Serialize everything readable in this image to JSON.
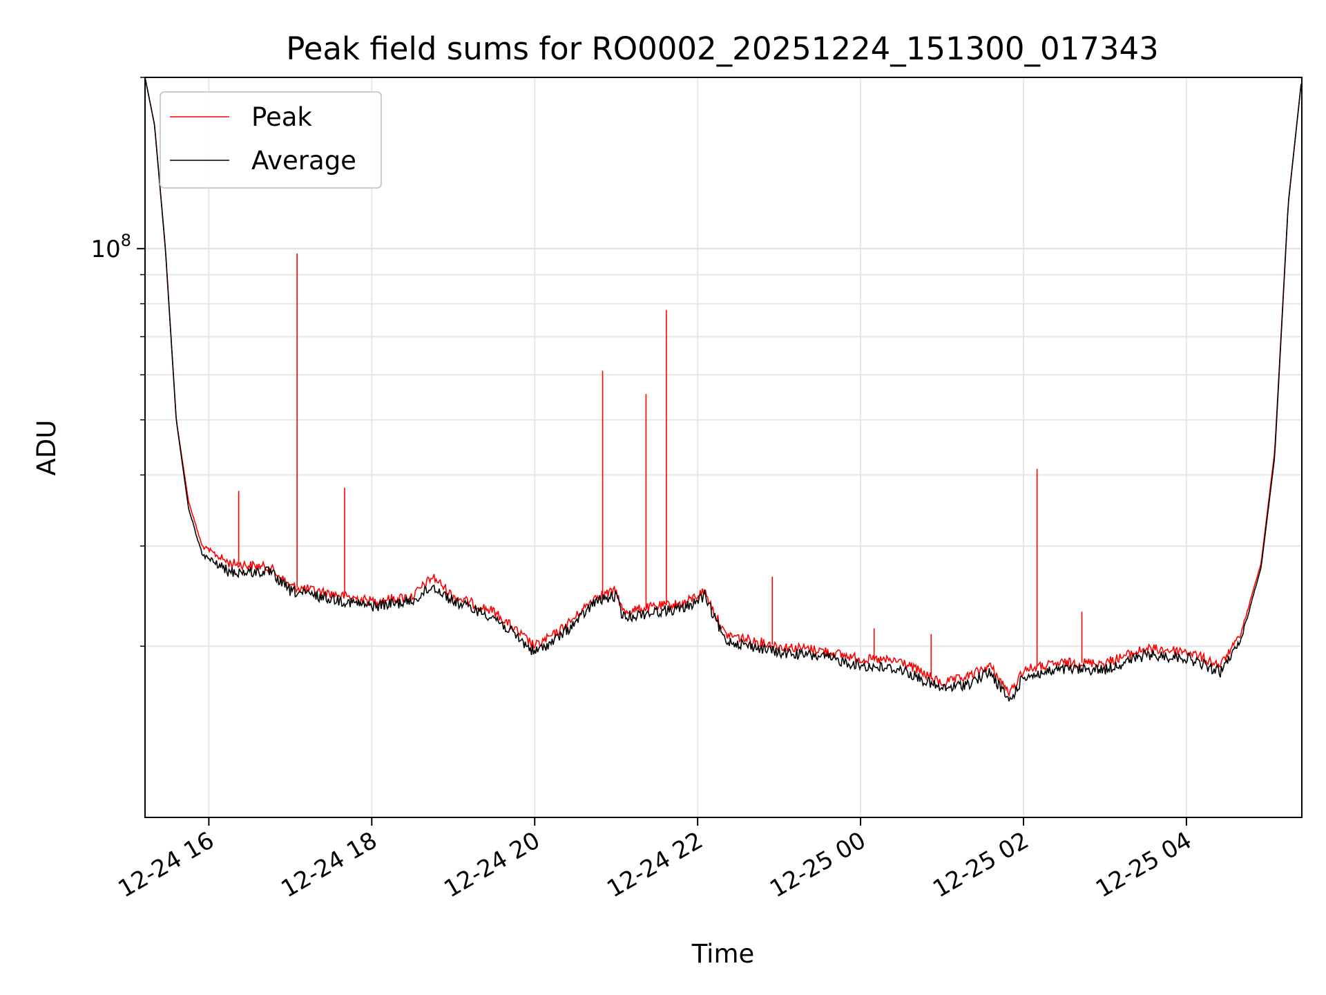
{
  "chart_data": {
    "type": "line",
    "title": "Peak field sums for RO0002_20251224_151300_017343",
    "xlabel": "Time",
    "ylabel": "ADU",
    "x_axis": {
      "type": "datetime",
      "range": [
        "2025-12-24 15:13",
        "2025-12-25 05:25"
      ],
      "ticks": [
        {
          "value": "2025-12-24 16:00",
          "label": "12-24 16"
        },
        {
          "value": "2025-12-24 18:00",
          "label": "12-24 18"
        },
        {
          "value": "2025-12-24 20:00",
          "label": "12-24 20"
        },
        {
          "value": "2025-12-24 22:00",
          "label": "12-24 22"
        },
        {
          "value": "2025-12-25 00:00",
          "label": "12-25 00"
        },
        {
          "value": "2025-12-25 02:00",
          "label": "12-25 02"
        },
        {
          "value": "2025-12-25 04:00",
          "label": "12-25 04"
        }
      ]
    },
    "y_axis": {
      "scale": "log",
      "range": [
        10000000,
        200000000
      ],
      "major_ticks": [
        {
          "value": 100000000,
          "label_base": "10",
          "label_exp": "8"
        }
      ],
      "minor_ticks": [
        20000000,
        30000000,
        40000000,
        50000000,
        60000000,
        70000000,
        80000000,
        90000000,
        200000000
      ]
    },
    "grid": true,
    "legend": {
      "position": "top-left"
    },
    "series": [
      {
        "name": "Peak",
        "color": "#ff0000",
        "points": [
          [
            "2025-12-24 15:13",
            200000000
          ],
          [
            "2025-12-24 15:20",
            165000000
          ],
          [
            "2025-12-24 15:28",
            100000000
          ],
          [
            "2025-12-24 15:36",
            50000000
          ],
          [
            "2025-12-24 15:45",
            36000000
          ],
          [
            "2025-12-24 15:55",
            30000000
          ],
          [
            "2025-12-24 16:15",
            28000000
          ],
          [
            "2025-12-24 16:45",
            27500000
          ],
          [
            "2025-12-24 17:00",
            25500000
          ],
          [
            "2025-12-24 17:20",
            25000000
          ],
          [
            "2025-12-24 17:40",
            24500000
          ],
          [
            "2025-12-24 18:00",
            24000000
          ],
          [
            "2025-12-24 18:30",
            24500000
          ],
          [
            "2025-12-24 18:45",
            26500000
          ],
          [
            "2025-12-24 19:00",
            24500000
          ],
          [
            "2025-12-24 19:30",
            23000000
          ],
          [
            "2025-12-24 20:00",
            20000000
          ],
          [
            "2025-12-24 20:15",
            21000000
          ],
          [
            "2025-12-24 20:30",
            22500000
          ],
          [
            "2025-12-24 20:45",
            24500000
          ],
          [
            "2025-12-24 21:00",
            25000000
          ],
          [
            "2025-12-24 21:05",
            23000000
          ],
          [
            "2025-12-24 21:30",
            23500000
          ],
          [
            "2025-12-24 21:50",
            23800000
          ],
          [
            "2025-12-24 22:05",
            25000000
          ],
          [
            "2025-12-24 22:20",
            21000000
          ],
          [
            "2025-12-24 23:00",
            20000000
          ],
          [
            "2025-12-24 23:30",
            19700000
          ],
          [
            "2025-12-25 00:00",
            19000000
          ],
          [
            "2025-12-25 00:30",
            18800000
          ],
          [
            "2025-12-25 01:00",
            17200000
          ],
          [
            "2025-12-25 01:20",
            17700000
          ],
          [
            "2025-12-25 01:35",
            18500000
          ],
          [
            "2025-12-25 01:50",
            16500000
          ],
          [
            "2025-12-25 02:00",
            18200000
          ],
          [
            "2025-12-25 02:30",
            18700000
          ],
          [
            "2025-12-25 03:00",
            18700000
          ],
          [
            "2025-12-25 03:30",
            19800000
          ],
          [
            "2025-12-25 04:00",
            19600000
          ],
          [
            "2025-12-25 04:25",
            18500000
          ],
          [
            "2025-12-25 04:40",
            21000000
          ],
          [
            "2025-12-25 04:55",
            28000000
          ],
          [
            "2025-12-25 05:05",
            44000000
          ],
          [
            "2025-12-25 05:15",
            120000000
          ],
          [
            "2025-12-25 05:25",
            200000000
          ]
        ],
        "spikes": [
          [
            "2025-12-24 16:22",
            37500000
          ],
          [
            "2025-12-24 17:05",
            98000000
          ],
          [
            "2025-12-24 17:40",
            38000000
          ],
          [
            "2025-12-24 20:50",
            61000000
          ],
          [
            "2025-12-24 21:22",
            55500000
          ],
          [
            "2025-12-24 21:37",
            78000000
          ],
          [
            "2025-12-24 22:55",
            26500000
          ],
          [
            "2025-12-25 00:10",
            21500000
          ],
          [
            "2025-12-25 00:52",
            21000000
          ],
          [
            "2025-12-25 02:10",
            41000000
          ],
          [
            "2025-12-25 02:43",
            23000000
          ]
        ]
      },
      {
        "name": "Average",
        "color": "#000000",
        "points": [
          [
            "2025-12-24 15:13",
            200000000
          ],
          [
            "2025-12-24 15:20",
            165000000
          ],
          [
            "2025-12-24 15:28",
            100000000
          ],
          [
            "2025-12-24 15:36",
            50000000
          ],
          [
            "2025-12-24 15:45",
            35000000
          ],
          [
            "2025-12-24 15:55",
            29000000
          ],
          [
            "2025-12-24 16:15",
            27000000
          ],
          [
            "2025-12-24 16:45",
            27000000
          ],
          [
            "2025-12-24 17:00",
            25000000
          ],
          [
            "2025-12-24 17:20",
            24500000
          ],
          [
            "2025-12-24 17:40",
            24000000
          ],
          [
            "2025-12-24 18:00",
            23500000
          ],
          [
            "2025-12-24 18:30",
            24000000
          ],
          [
            "2025-12-24 18:45",
            25500000
          ],
          [
            "2025-12-24 19:00",
            24000000
          ],
          [
            "2025-12-24 19:30",
            22500000
          ],
          [
            "2025-12-24 20:00",
            19500000
          ],
          [
            "2025-12-24 20:15",
            20500000
          ],
          [
            "2025-12-24 20:30",
            22000000
          ],
          [
            "2025-12-24 20:45",
            24000000
          ],
          [
            "2025-12-24 21:00",
            24500000
          ],
          [
            "2025-12-24 21:05",
            22500000
          ],
          [
            "2025-12-24 21:30",
            23000000
          ],
          [
            "2025-12-24 21:50",
            23300000
          ],
          [
            "2025-12-24 22:05",
            24500000
          ],
          [
            "2025-12-24 22:20",
            20500000
          ],
          [
            "2025-12-24 23:00",
            19500000
          ],
          [
            "2025-12-24 23:30",
            19200000
          ],
          [
            "2025-12-25 00:00",
            18500000
          ],
          [
            "2025-12-25 00:30",
            18200000
          ],
          [
            "2025-12-25 01:00",
            16800000
          ],
          [
            "2025-12-25 01:20",
            17200000
          ],
          [
            "2025-12-25 01:35",
            18000000
          ],
          [
            "2025-12-25 01:50",
            16000000
          ],
          [
            "2025-12-25 02:00",
            17700000
          ],
          [
            "2025-12-25 02:30",
            18200000
          ],
          [
            "2025-12-25 03:00",
            18200000
          ],
          [
            "2025-12-25 03:30",
            19300000
          ],
          [
            "2025-12-25 04:00",
            19100000
          ],
          [
            "2025-12-25 04:25",
            18000000
          ],
          [
            "2025-12-25 04:40",
            20500000
          ],
          [
            "2025-12-25 04:55",
            27500000
          ],
          [
            "2025-12-25 05:05",
            43000000
          ],
          [
            "2025-12-25 05:15",
            120000000
          ],
          [
            "2025-12-25 05:25",
            200000000
          ]
        ]
      }
    ]
  }
}
